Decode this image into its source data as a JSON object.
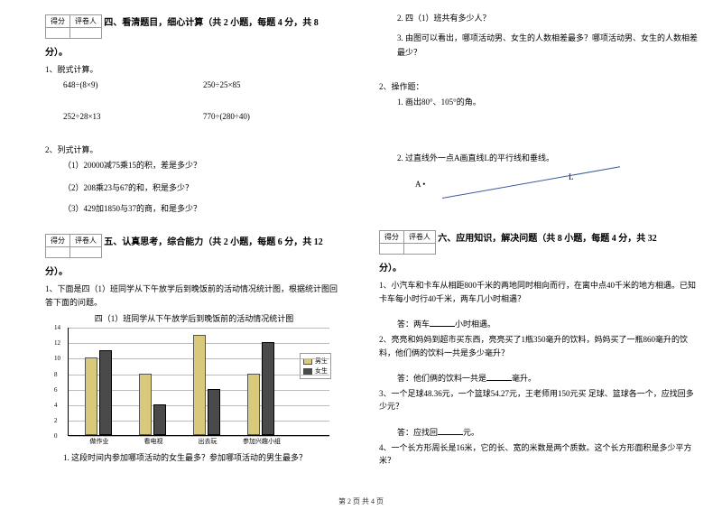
{
  "scorebox": {
    "c1": "得分",
    "c2": "评卷人"
  },
  "sec4": {
    "title": "四、看清题目，细心计算（共 2 小题，每题 4 分，共 8",
    "pts_end": "分）。",
    "q1": "1、脱式计算。",
    "e1": "648÷(8×9)",
    "e2": "250÷25×85",
    "e3": "252÷28×13",
    "e4": "770÷(280÷40)",
    "q2": "2、列式计算。",
    "s1": "（1）20000减75乘15的积，差是多少？",
    "s2": "（2）208乘23与67的和，积是多少？",
    "s3": "（3）429加1850与37的商，和是多少？"
  },
  "sec5": {
    "title": "五、认真思考，综合能力（共 2 小题，每题 6 分，共 12",
    "pts_end": "分）。",
    "q1": "1、下面是四（1）班同学从下午放学后到晚饭前的活动情况统计图，根据统计图回答下面的问题。",
    "chart_title": "四（1）班同学从下午放学后到晚饭前的活动情况统计图",
    "ylabels": [
      "14",
      "12",
      "10",
      "8",
      "6",
      "4",
      "2",
      "0"
    ],
    "ymax": 14,
    "categories": [
      "做作业",
      "看电视",
      "出去玩",
      "参加兴趣小组"
    ],
    "series": [
      {
        "name": "男生",
        "color": "#d9c97a",
        "values": [
          10,
          8,
          13,
          8
        ]
      },
      {
        "name": "女生",
        "color": "#4a4a4a",
        "values": [
          11,
          4,
          6,
          12
        ]
      }
    ],
    "sub1": "1. 这段时间内参加哪项活动的女生最多？参加哪项活动的男生最多？"
  },
  "right": {
    "r1": "2. 四（1）班共有多少人？",
    "r2": "3. 由图可以看出，哪项活动男、女生的人数相差最多？哪项活动男、女生的人数相差最少？",
    "q2": "2、操作题：",
    "s1": "1. 画出80°、105°的角。",
    "s2": "2. 过直线外一点A画直线L的平行线和垂线。",
    "labA": "A  •",
    "labL": "L"
  },
  "sec6": {
    "title": "六、应用知识，解决问题（共 8 小题，每题 4 分，共 32",
    "pts_end": "分）。",
    "q1": "1、小汽车和卡车从相距800千米的两地同时相向而行，在离中点40千米的地方相遇。已知卡车每小时行40千米，两车几小时相遇？",
    "a1a": "答：两车",
    "a1b": "小时相遇。",
    "q2": "2、亮亮和妈妈到超市买东西，亮亮买了1瓶350毫升的饮料，妈妈买了一瓶860毫升的饮料，他们俩的饮料一共是多少毫升？",
    "a2a": "答：他们俩的饮料一共是",
    "a2b": "毫升。",
    "q3": "3、一个足球48.36元，一个篮球54.27元，王老师用150元买   足球、篮球各一个，应找回多少元？",
    "a3a": "答：应找回",
    "a3b": "元。",
    "q4": "4、一个长方形周长是16米，它的长、宽的米数是两个质数。这个长方形面积是多少平方米？"
  },
  "footer": "第 2 页 共 4 页"
}
